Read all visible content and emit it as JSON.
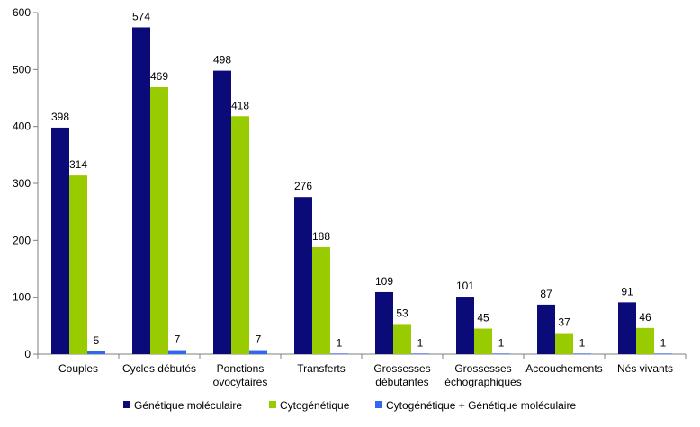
{
  "chart_data": {
    "type": "bar",
    "title": "",
    "xlabel": "",
    "ylabel": "",
    "ylim": [
      0,
      600
    ],
    "yticks": [
      0,
      100,
      200,
      300,
      400,
      500,
      600
    ],
    "grid": false,
    "legend_position": "bottom",
    "categories": [
      [
        "Couples"
      ],
      [
        "Cycles débutés"
      ],
      [
        "Ponctions",
        "ovocytaires"
      ],
      [
        "Transferts"
      ],
      [
        "Grossesses",
        "débutantes"
      ],
      [
        "Grossesses",
        "échographiques"
      ],
      [
        "Accouchements"
      ],
      [
        "Nés vivants"
      ]
    ],
    "series": [
      {
        "name": "Génétique moléculaire",
        "color": "#0a0a78",
        "values": [
          398,
          574,
          498,
          276,
          109,
          101,
          87,
          91
        ]
      },
      {
        "name": "Cytogénétique",
        "color": "#99cc00",
        "values": [
          314,
          469,
          418,
          188,
          53,
          45,
          37,
          46
        ]
      },
      {
        "name": "Cytogénétique + Génétique moléculaire",
        "color": "#3366ee",
        "values": [
          5,
          7,
          7,
          1,
          1,
          1,
          1,
          1
        ]
      }
    ]
  }
}
